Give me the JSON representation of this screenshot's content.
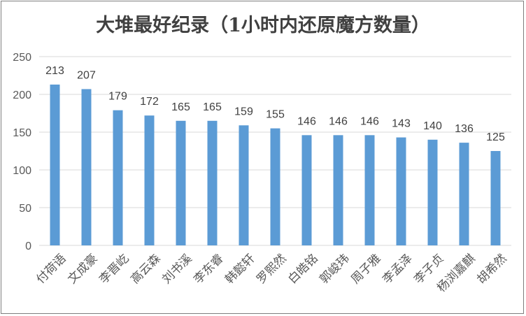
{
  "chart_data": {
    "type": "bar",
    "title": "大堆最好纪录（1小时内还原魔方数量）",
    "categories": [
      "付荷语",
      "文成豪",
      "李晋屹",
      "高云森",
      "刘书溪",
      "李东睿",
      "韩懿轩",
      "罗熙然",
      "白皓铭",
      "郭峻玮",
      "周子雅",
      "李孟泽",
      "李子贞",
      "杨浏嘉麒",
      "胡希然"
    ],
    "values": [
      213,
      207,
      179,
      172,
      165,
      165,
      159,
      155,
      146,
      146,
      146,
      143,
      140,
      136,
      125
    ],
    "ylim": [
      0,
      250
    ],
    "yticks": [
      0,
      50,
      100,
      150,
      200,
      250
    ],
    "grid": true,
    "legend": "none",
    "data_labels": true,
    "xlabel": "",
    "ylabel": "",
    "colors": {
      "bar": "#5b9bd5",
      "grid": "#d9d9d9",
      "text": "#404040",
      "title": "#404040",
      "tick_text": "#595959"
    }
  }
}
